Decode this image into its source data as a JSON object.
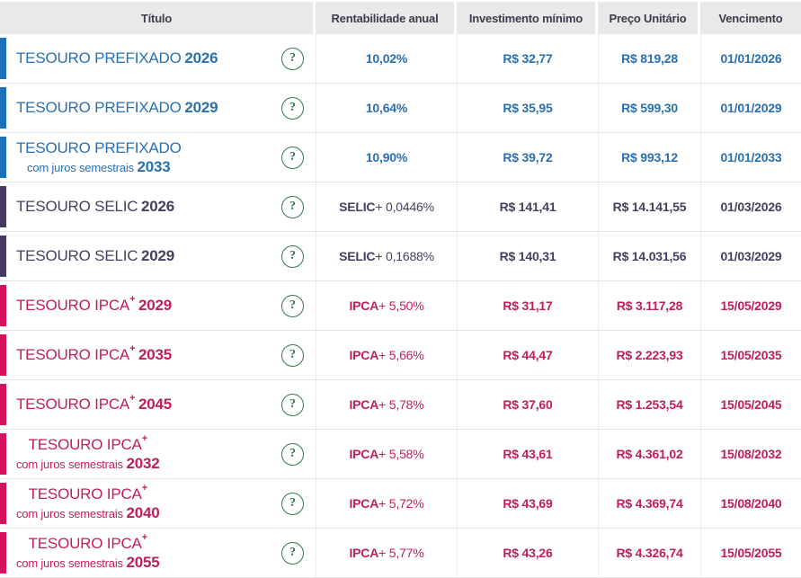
{
  "header": {
    "columns": [
      {
        "label": "Título"
      },
      {
        "label": "Rentabilidade anual"
      },
      {
        "label": "Investimento mínimo"
      },
      {
        "label": "Preço Unitário"
      },
      {
        "label": "Vencimento"
      }
    ]
  },
  "help_icon": {
    "glyph": "?"
  },
  "colors": {
    "prefixado_bar": "#1c72b8",
    "prefixado_text": "#2a70af",
    "selic_bar": "#46395f",
    "selic_text": "#454060",
    "ipca_bar": "#d3115c",
    "ipca_text": "#bf1e5e",
    "header_bg": "#e9e9e9",
    "header_text": "#3c3c4e",
    "row_border": "#e3e3e3",
    "help_green": "#35774d"
  },
  "rows": [
    {
      "type": "prefixado",
      "name": "TESOURO PREFIXADO",
      "sup": "",
      "subtitle": "",
      "year": "2026",
      "rate_prefix": "",
      "rate": "10,02%",
      "min_investment": "R$ 32,77",
      "unit_price": "R$ 819,28",
      "maturity": "01/01/2026"
    },
    {
      "type": "prefixado",
      "name": "TESOURO PREFIXADO",
      "sup": "",
      "subtitle": "",
      "year": "2029",
      "rate_prefix": "",
      "rate": "10,64%",
      "min_investment": "R$ 35,95",
      "unit_price": "R$ 599,30",
      "maturity": "01/01/2029"
    },
    {
      "type": "prefixado",
      "name": "TESOURO PREFIXADO",
      "sup": "",
      "subtitle": "com juros semestrais",
      "year": "2033",
      "rate_prefix": "",
      "rate": "10,90%",
      "min_investment": "R$ 39,72",
      "unit_price": "R$ 993,12",
      "maturity": "01/01/2033"
    },
    {
      "type": "selic",
      "name": "TESOURO SELIC",
      "sup": "",
      "subtitle": "",
      "year": "2026",
      "rate_prefix": "SELIC",
      "rate": "+ 0,0446%",
      "min_investment": "R$ 141,41",
      "unit_price": "R$ 14.141,55",
      "maturity": "01/03/2026"
    },
    {
      "type": "selic",
      "name": "TESOURO SELIC",
      "sup": "",
      "subtitle": "",
      "year": "2029",
      "rate_prefix": "SELIC",
      "rate": "+ 0,1688%",
      "min_investment": "R$ 140,31",
      "unit_price": "R$ 14.031,56",
      "maturity": "01/03/2029"
    },
    {
      "type": "ipca",
      "name": "TESOURO IPCA",
      "sup": "+",
      "subtitle": "",
      "year": "2029",
      "rate_prefix": "IPCA",
      "rate": "+ 5,50%",
      "min_investment": "R$ 31,17",
      "unit_price": "R$ 3.117,28",
      "maturity": "15/05/2029"
    },
    {
      "type": "ipca",
      "name": "TESOURO IPCA",
      "sup": "+",
      "subtitle": "",
      "year": "2035",
      "rate_prefix": "IPCA",
      "rate": "+ 5,66%",
      "min_investment": "R$ 44,47",
      "unit_price": "R$ 2.223,93",
      "maturity": "15/05/2035"
    },
    {
      "type": "ipca",
      "name": "TESOURO IPCA",
      "sup": "+",
      "subtitle": "",
      "year": "2045",
      "rate_prefix": "IPCA",
      "rate": "+ 5,78%",
      "min_investment": "R$ 37,60",
      "unit_price": "R$ 1.253,54",
      "maturity": "15/05/2045"
    },
    {
      "type": "ipca",
      "name": "TESOURO IPCA",
      "sup": "+",
      "subtitle": "com juros semestrais",
      "year": "2032",
      "rate_prefix": "IPCA",
      "rate": "+ 5,58%",
      "min_investment": "R$ 43,61",
      "unit_price": "R$ 4.361,02",
      "maturity": "15/08/2032"
    },
    {
      "type": "ipca",
      "name": "TESOURO IPCA",
      "sup": "+",
      "subtitle": "com juros semestrais",
      "year": "2040",
      "rate_prefix": "IPCA",
      "rate": "+ 5,72%",
      "min_investment": "R$ 43,69",
      "unit_price": "R$ 4.369,74",
      "maturity": "15/08/2040"
    },
    {
      "type": "ipca",
      "name": "TESOURO IPCA",
      "sup": "+",
      "subtitle": "com juros semestrais",
      "year": "2055",
      "rate_prefix": "IPCA",
      "rate": "+ 5,77%",
      "min_investment": "R$ 43,26",
      "unit_price": "R$ 4.326,74",
      "maturity": "15/05/2055"
    }
  ]
}
